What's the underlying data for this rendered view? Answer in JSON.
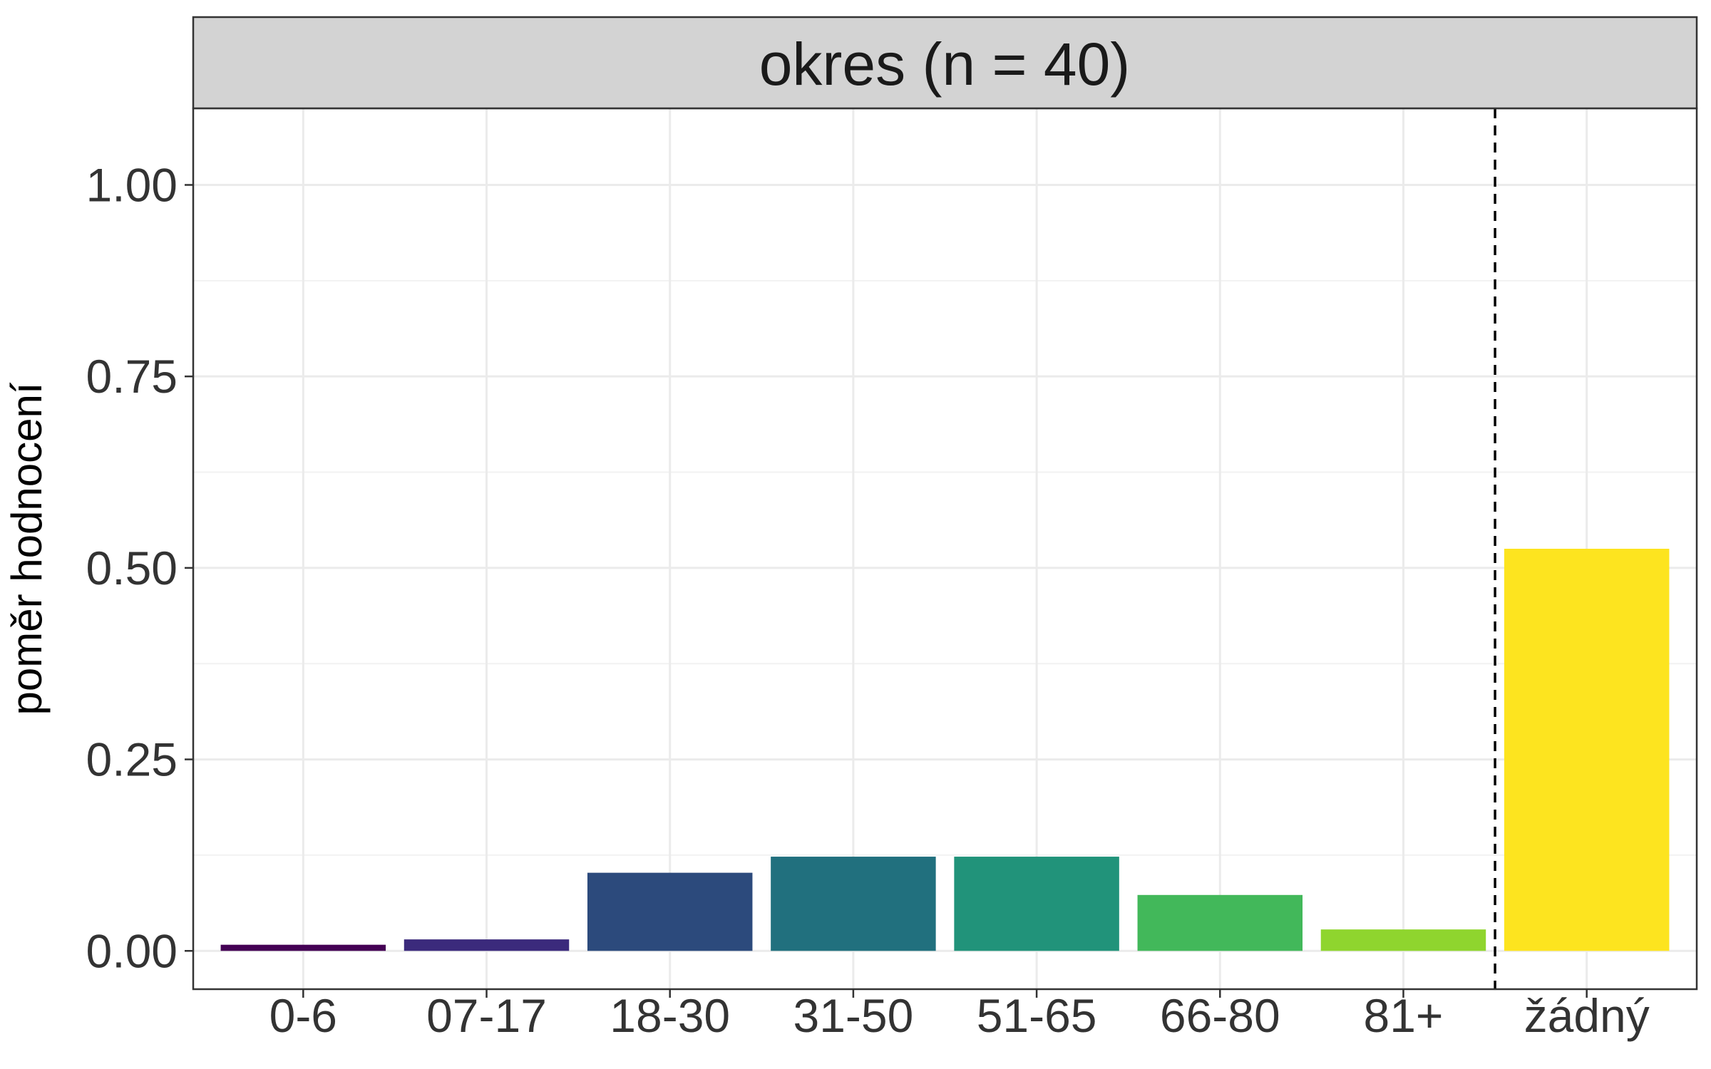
{
  "chart_data": {
    "type": "bar",
    "panel_title": "okres (n = 40)",
    "xlabel": "",
    "ylabel": "poměr hodnocení",
    "categories": [
      "0-6",
      "07-17",
      "18-30",
      "31-50",
      "51-65",
      "66-80",
      "81+",
      "žádný"
    ],
    "values": [
      0.008,
      0.015,
      0.102,
      0.123,
      0.123,
      0.073,
      0.028,
      0.525
    ],
    "colors": [
      "#440154",
      "#3b2a7c",
      "#2c4a7c",
      "#21707e",
      "#21937a",
      "#42b85a",
      "#8fd52e",
      "#fde41f"
    ],
    "ylim": [
      -0.05,
      1.1
    ],
    "yticks": [
      0.0,
      0.25,
      0.5,
      0.75,
      1.0
    ],
    "ytick_labels": [
      "0.00",
      "0.25",
      "0.50",
      "0.75",
      "1.00"
    ],
    "separator_after_index": 6,
    "separator_style": "dashed",
    "grid": true,
    "legend": "none",
    "theme": {
      "strip_fill": "#d3d3d3",
      "panel_border": "#333333",
      "grid_major": "#ebebeb",
      "grid_minor": "#f2f2f2",
      "separator_color": "#000000"
    }
  }
}
